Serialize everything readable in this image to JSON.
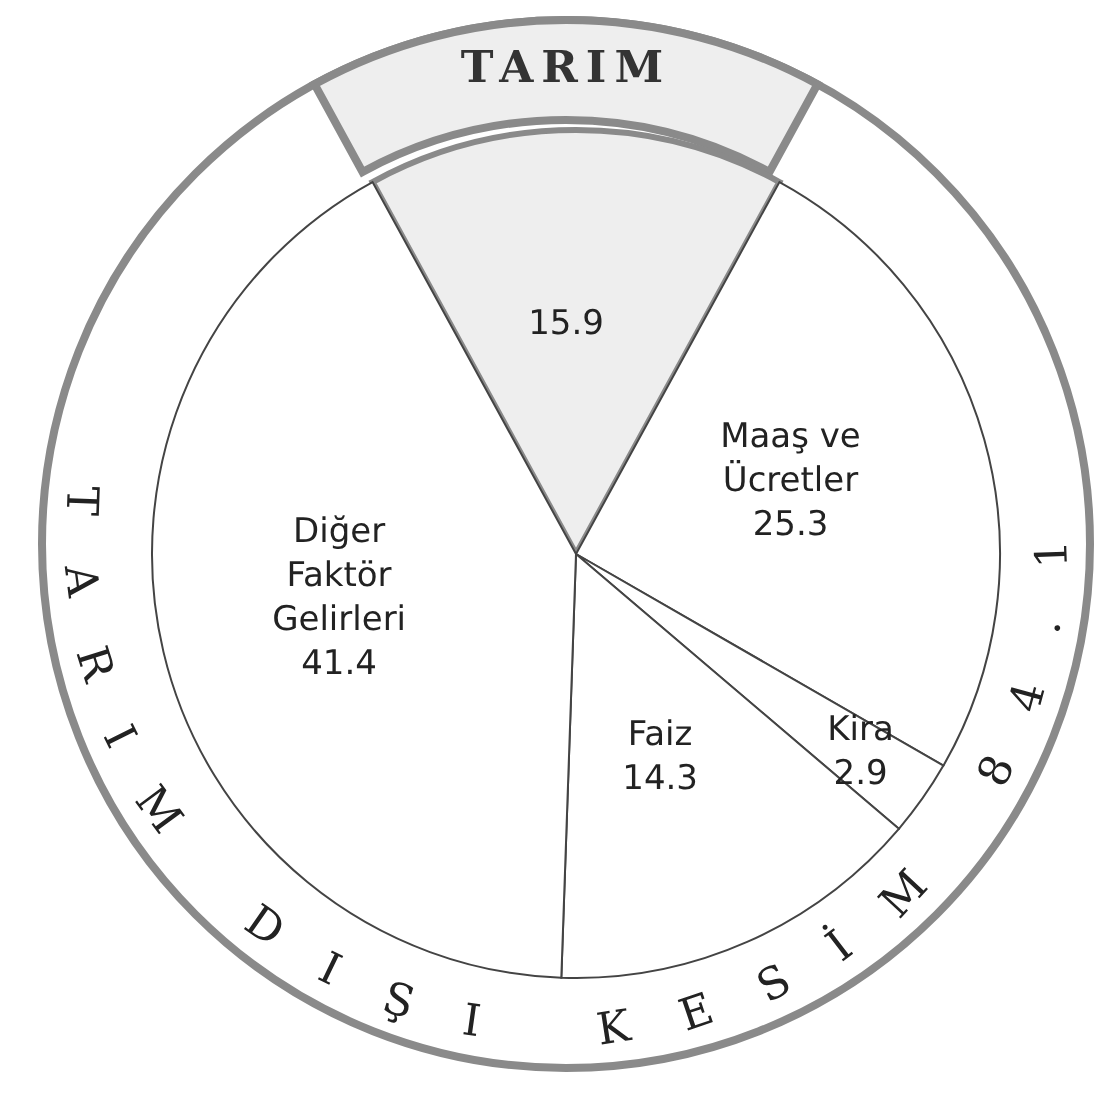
{
  "chart_data": {
    "type": "pie",
    "categories": [
      "TARIM",
      "Maaş ve Ücretler",
      "Kira",
      "Faiz",
      "Diğer Faktör Gelirleri"
    ],
    "values": [
      15.9,
      25.3,
      2.9,
      14.3,
      41.4
    ],
    "colors": [
      "#eeeeee",
      "#ffffff",
      "#ffffff",
      "#ffffff",
      "#ffffff"
    ],
    "data_labels": true,
    "annotations": [
      "TARIM DIŞI KESİM 84.1"
    ]
  }
}
